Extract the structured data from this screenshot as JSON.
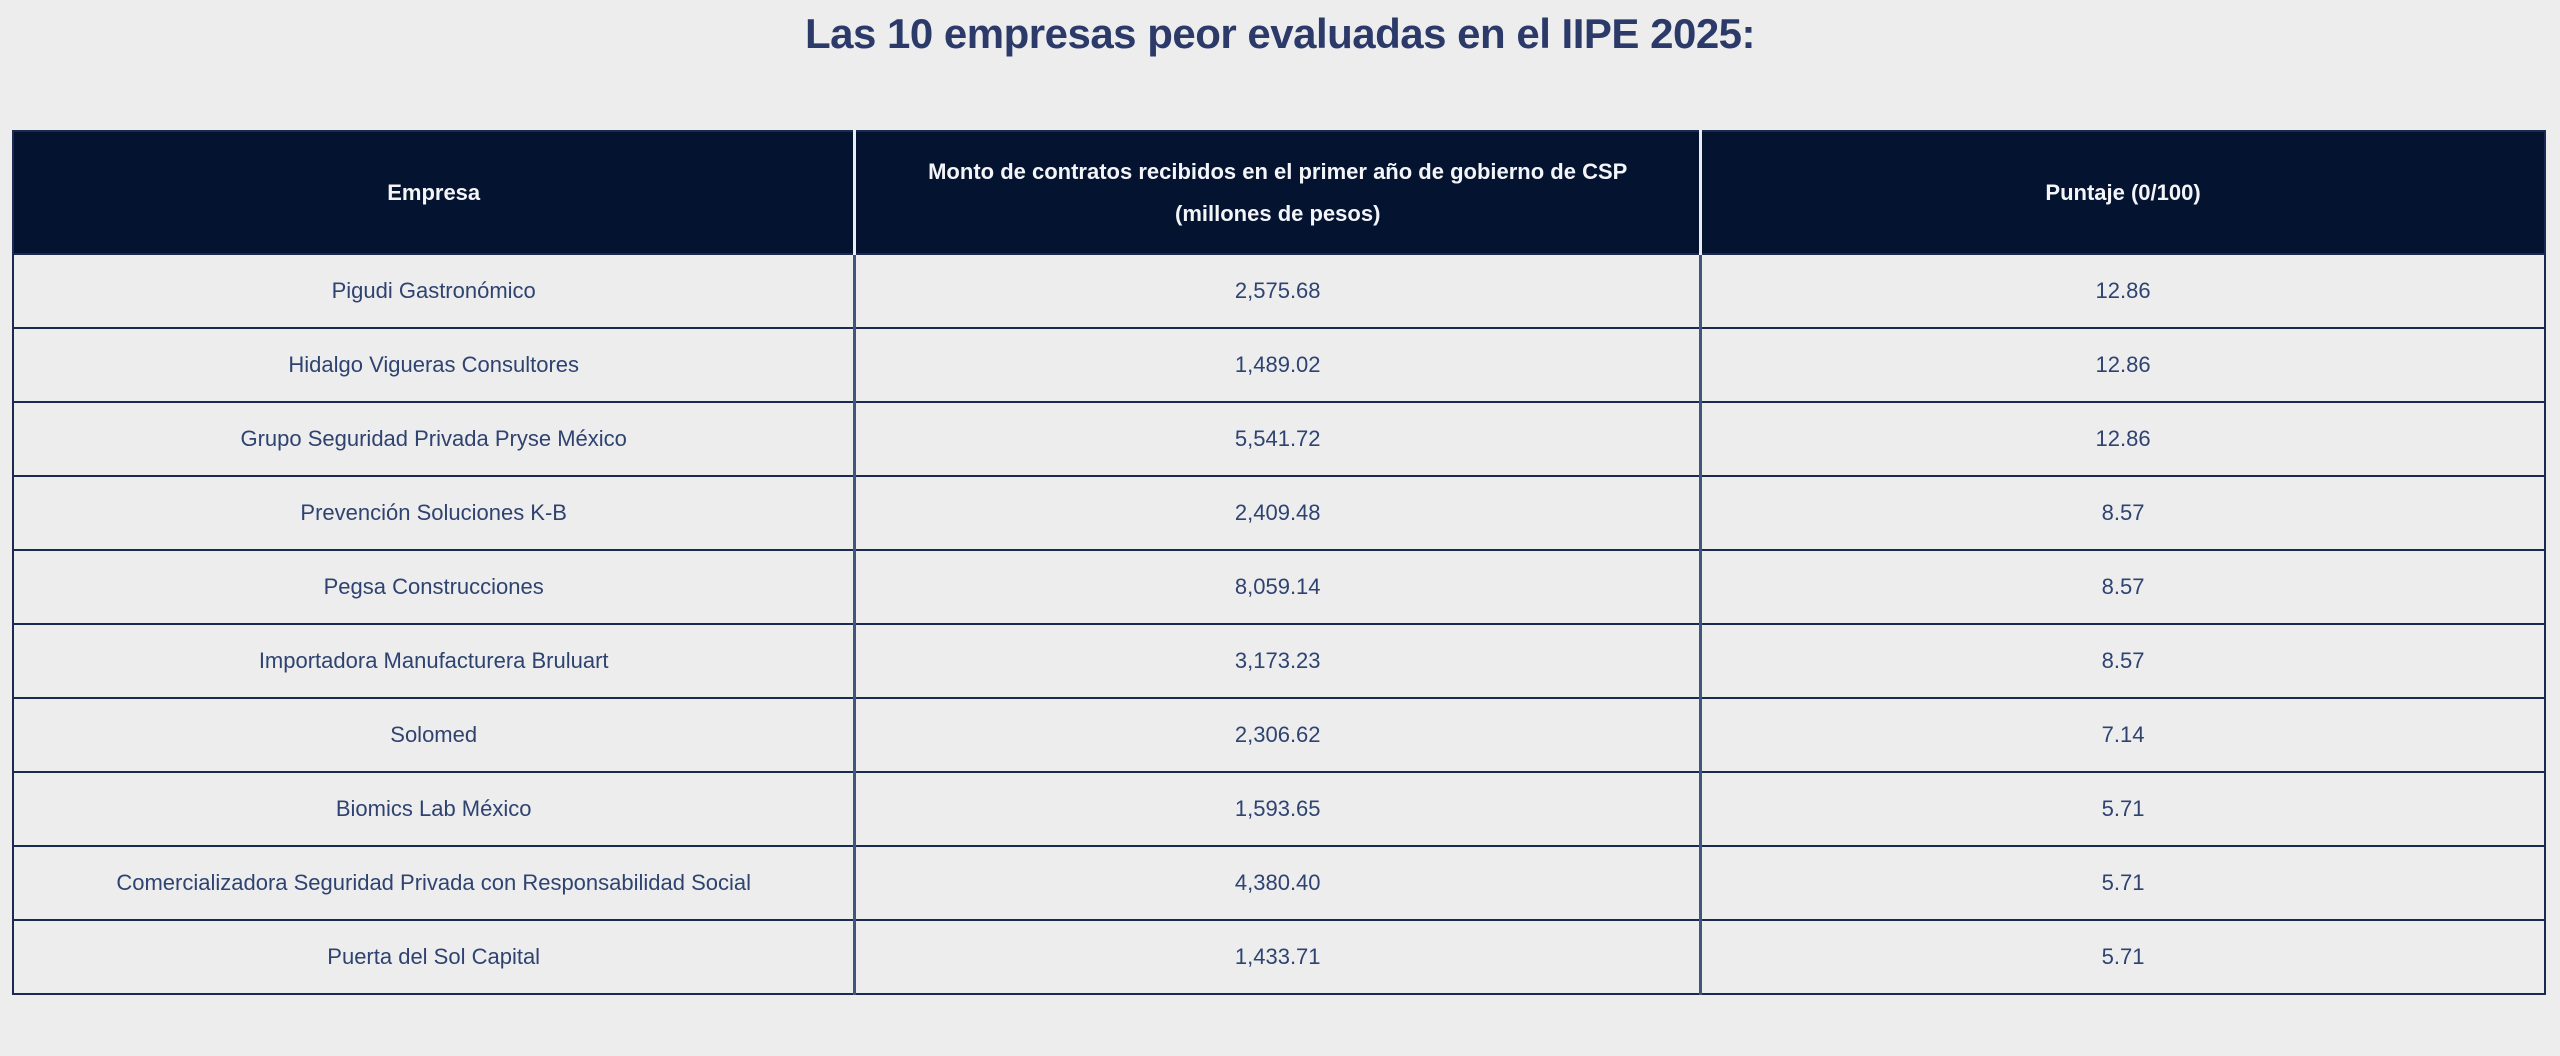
{
  "title": "Las 10 empresas peor evaluadas en el IIPE 2025:",
  "colors": {
    "page_bg": "#ededee",
    "header_bg": "#041330",
    "header_text": "#f4f5f9",
    "cell_text": "#2e4370",
    "title_text": "#2b3a69",
    "row_border": "#1b2a52",
    "body_column_divider": "#42567c",
    "header_column_divider": "#e9ecf4"
  },
  "chart_data": {
    "type": "table",
    "title": "Las 10 empresas peor evaluadas en el IIPE 2025:",
    "columns": [
      "Empresa",
      "Monto de contratos recibidos en el primer año de gobierno de CSP (millones de pesos)",
      "Puntaje (0/100)"
    ],
    "rows": [
      [
        "Pigudi Gastronómico",
        "2,575.68",
        "12.86"
      ],
      [
        "Hidalgo Vigueras Consultores",
        "1,489.02",
        "12.86"
      ],
      [
        "Grupo Seguridad Privada Pryse México",
        "5,541.72",
        "12.86"
      ],
      [
        "Prevención Soluciones K-B",
        "2,409.48",
        "8.57"
      ],
      [
        "Pegsa Construcciones",
        "8,059.14",
        "8.57"
      ],
      [
        "Importadora Manufacturera Bruluart",
        "3,173.23",
        "8.57"
      ],
      [
        "Solomed",
        "2,306.62",
        "7.14"
      ],
      [
        "Biomics Lab México",
        "1,593.65",
        "5.71"
      ],
      [
        "Comercializadora Seguridad Privada con Responsabilidad Social",
        "4,380.40",
        "5.71"
      ],
      [
        "Puerta del Sol Capital",
        "1,433.71",
        "5.71"
      ]
    ]
  }
}
